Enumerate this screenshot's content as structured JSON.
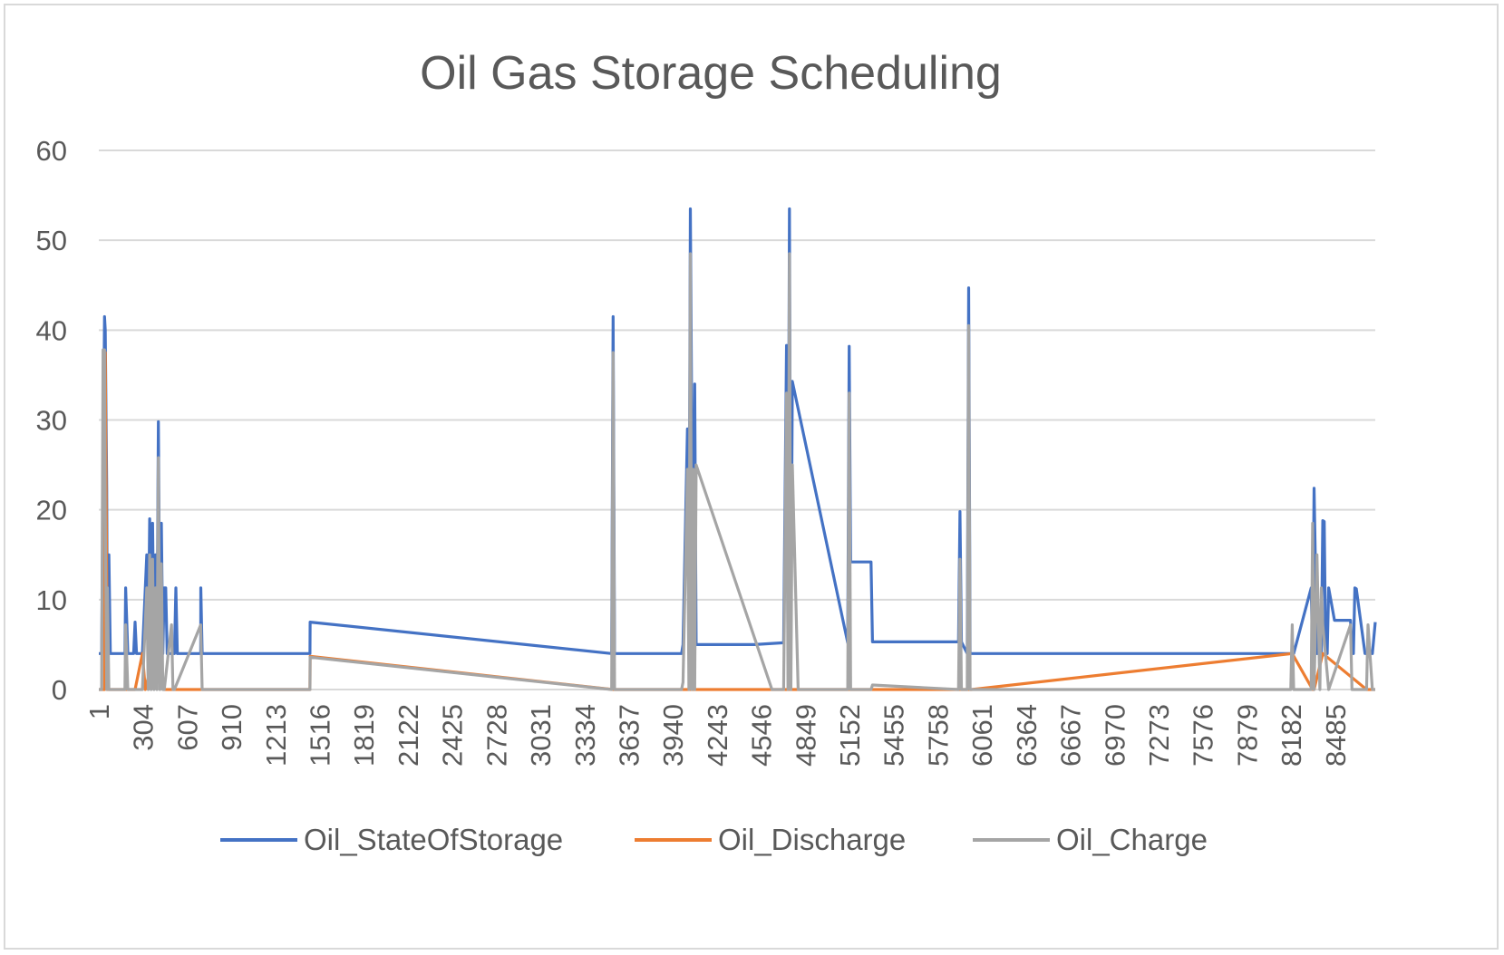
{
  "chart_data": {
    "type": "line",
    "title": "Oil Gas Storage Scheduling",
    "xlabel": "",
    "ylabel": "",
    "ylim": [
      0,
      60
    ],
    "xlim": [
      1,
      8760
    ],
    "y_ticks": [
      "0",
      "10",
      "20",
      "30",
      "40",
      "50",
      "60"
    ],
    "x_ticks": [
      "1",
      "304",
      "607",
      "910",
      "1213",
      "1516",
      "1819",
      "2122",
      "2425",
      "2728",
      "3031",
      "3334",
      "3637",
      "3940",
      "4243",
      "4546",
      "4849",
      "5152",
      "5455",
      "5758",
      "6061",
      "6364",
      "6667",
      "6970",
      "7273",
      "7576",
      "7879",
      "8182",
      "8485"
    ],
    "grid": "horizontal",
    "legend": "bottom",
    "series": [
      {
        "name": "Oil_StateOfStorage",
        "color": "#4472C4",
        "x": [
          1,
          20,
          40,
          45,
          55,
          60,
          70,
          80,
          90,
          100,
          150,
          180,
          185,
          200,
          240,
          250,
          260,
          300,
          330,
          340,
          350,
          360,
          370,
          380,
          390,
          400,
          410,
          420,
          430,
          440,
          450,
          460,
          470,
          480,
          490,
          520,
          530,
          540,
          560,
          600,
          601,
          610,
          620,
          700,
          701,
          710,
          720,
          1450,
          1451,
          3520,
          3530,
          3540,
          3560,
          4000,
          4010,
          4040,
          4050,
          4060,
          4080,
          4090,
          4100,
          4120,
          4500,
          4700,
          4720,
          4730,
          4740,
          4750,
          4760,
          5140,
          5150,
          5160,
          5170,
          5300,
          5310,
          5900,
          5910,
          5920,
          5960,
          5970,
          5980,
          8180,
          8190,
          8200,
          8320,
          8330,
          8340,
          8360,
          8380,
          8390,
          8400,
          8410,
          8420,
          8430,
          8440,
          8480,
          8590,
          8600,
          8610,
          8620,
          8630,
          8690,
          8700,
          8710,
          8740,
          8760
        ],
        "y": [
          4,
          4,
          41.5,
          40,
          22.5,
          4,
          15,
          4,
          4,
          4,
          4,
          4,
          11.3,
          4,
          4,
          7.5,
          4,
          4,
          15,
          4,
          19,
          4,
          18.5,
          4,
          15,
          4,
          29.8,
          4,
          18.5,
          4,
          11.3,
          11.3,
          4,
          4,
          4,
          4,
          11.3,
          4,
          4,
          4,
          4,
          4,
          4,
          4,
          11.3,
          4,
          4,
          4,
          7.5,
          4,
          41.5,
          4,
          4,
          4,
          5,
          29,
          4,
          53.5,
          4,
          34,
          5,
          5,
          5,
          5.2,
          38.3,
          5.2,
          53.5,
          5.2,
          34.3,
          5.2,
          38.2,
          14.2,
          14.2,
          14.2,
          5.3,
          5.3,
          19.8,
          5.3,
          4,
          44.7,
          4,
          4,
          4,
          4,
          11.3,
          4,
          22.4,
          4,
          4,
          4,
          18.8,
          18.7,
          4,
          4,
          11.3,
          7.7,
          7.7,
          4,
          4,
          11.3,
          11.2,
          4,
          4,
          4,
          4,
          7.5
        ]
      },
      {
        "name": "Oil_Discharge",
        "color": "#ED7D31",
        "x": [
          1,
          40,
          45,
          60,
          80,
          250,
          300,
          320,
          380,
          450,
          600,
          650,
          720,
          1450,
          1451,
          3530,
          3540,
          4050,
          4060,
          4740,
          4750,
          5150,
          5160,
          5300,
          5310,
          5980,
          5990,
          8190,
          8330,
          8340,
          8400,
          8700,
          8760
        ],
        "y": [
          0,
          0,
          37.5,
          0,
          0,
          0,
          4,
          0,
          4,
          0,
          0,
          0,
          0,
          0,
          3.7,
          0,
          0,
          0,
          0,
          0,
          0,
          0,
          0,
          0,
          0,
          0,
          0,
          4,
          0,
          0,
          4,
          0,
          0
        ]
      },
      {
        "name": "Oil_Charge",
        "color": "#A5A5A5",
        "x": [
          1,
          20,
          30,
          40,
          45,
          55,
          60,
          70,
          80,
          90,
          180,
          185,
          200,
          300,
          330,
          340,
          350,
          360,
          370,
          380,
          390,
          400,
          410,
          420,
          430,
          440,
          450,
          500,
          510,
          520,
          700,
          710,
          1450,
          1451,
          3520,
          3530,
          3540,
          4000,
          4010,
          4040,
          4050,
          4060,
          4070,
          4080,
          4090,
          4100,
          4620,
          4700,
          4720,
          4730,
          4740,
          4750,
          4760,
          4800,
          5140,
          5150,
          5160,
          5300,
          5310,
          5900,
          5910,
          5920,
          5960,
          5970,
          5980,
          8180,
          8190,
          8200,
          8320,
          8330,
          8340,
          8360,
          8380,
          8390,
          8400,
          8440,
          8590,
          8600,
          8610,
          8700,
          8710,
          8740,
          8760
        ],
        "y": [
          0,
          0,
          37.8,
          37.8,
          20,
          0,
          11.3,
          0,
          0,
          0,
          0,
          7.2,
          0,
          0,
          11.3,
          0,
          15,
          0,
          14.5,
          0,
          11.3,
          0,
          25.8,
          0,
          14,
          0,
          0,
          7.2,
          0,
          0,
          7.2,
          0,
          0,
          3.6,
          0,
          37.5,
          0,
          0,
          0.8,
          24.5,
          0,
          48.5,
          0,
          24.5,
          0,
          25,
          0,
          0,
          33,
          0,
          48.5,
          0,
          25,
          0,
          0,
          33,
          0,
          0,
          0.5,
          0,
          14.5,
          0,
          0,
          40.5,
          0,
          0,
          7.2,
          0,
          0,
          18.5,
          0,
          15,
          0,
          11.3,
          7.2,
          0,
          7.2,
          0,
          0,
          0,
          7.2,
          0,
          0
        ]
      }
    ]
  }
}
